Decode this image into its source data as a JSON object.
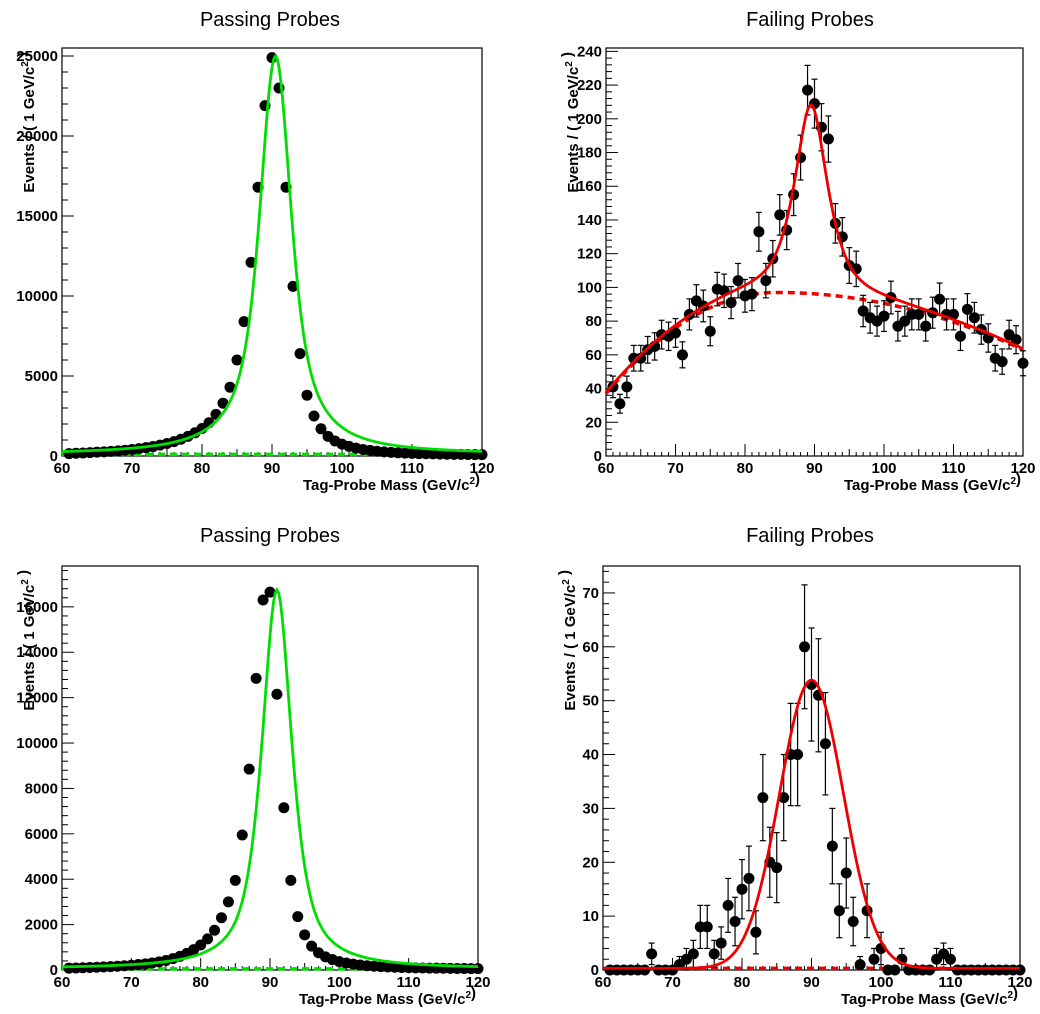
{
  "x_label": "Tag-Probe Mass (GeV/c²)",
  "y_label": "Events / ( 1 GeV/c² )",
  "colors": {
    "pass_fit": "#00dd00",
    "fail_fit": "#ee0000",
    "points": "#000000"
  },
  "chart_data": [
    {
      "type": "scatter",
      "title": "Passing Probes",
      "xlabel": "Tag-Probe Mass (GeV/c²)",
      "ylabel": "Events / ( 1 GeV/c² )",
      "xlim": [
        60,
        120
      ],
      "ylim": [
        0,
        25500
      ],
      "xticks": [
        60,
        70,
        80,
        90,
        100,
        110,
        120
      ],
      "yticks": [
        0,
        5000,
        10000,
        15000,
        20000,
        25000
      ],
      "series": [
        {
          "role": "data",
          "x": [
            61,
            62,
            63,
            64,
            65,
            66,
            67,
            68,
            69,
            70,
            71,
            72,
            73,
            74,
            75,
            76,
            77,
            78,
            79,
            80,
            81,
            82,
            83,
            84,
            85,
            86,
            87,
            88,
            89,
            90,
            91,
            92,
            93,
            94,
            95,
            96,
            97,
            98,
            99,
            100,
            101,
            102,
            103,
            104,
            105,
            106,
            107,
            108,
            109,
            110,
            111,
            112,
            113,
            114,
            115,
            116,
            117,
            118,
            119,
            120
          ],
          "y": [
            150,
            170,
            190,
            210,
            240,
            260,
            290,
            320,
            360,
            410,
            460,
            520,
            590,
            680,
            780,
            900,
            1050,
            1230,
            1450,
            1720,
            2080,
            2600,
            3300,
            4300,
            6000,
            8400,
            12100,
            16800,
            21900,
            24900,
            23000,
            16800,
            10600,
            6400,
            3800,
            2500,
            1700,
            1230,
            940,
            740,
            600,
            490,
            410,
            350,
            300,
            260,
            230,
            200,
            180,
            165,
            150,
            140,
            130,
            120,
            110,
            105,
            100,
            95,
            90,
            85
          ],
          "yerr": []
        },
        {
          "role": "fit",
          "style": "solid",
          "color": "#00dd00",
          "model": "voigt",
          "amp": 24900,
          "mean": 90.5,
          "gamma": 3.0,
          "sigma": 0.9,
          "bkg": 100
        },
        {
          "role": "background",
          "style": "dashed",
          "color": "#00dd00",
          "value": 100
        }
      ]
    },
    {
      "type": "scatter",
      "title": "Failing Probes",
      "xlabel": "Tag-Probe Mass (GeV/c²)",
      "ylabel": "Events / ( 1 GeV/c² )",
      "xlim": [
        60,
        120
      ],
      "ylim": [
        0,
        242
      ],
      "xticks": [
        60,
        70,
        80,
        90,
        100,
        110,
        120
      ],
      "yticks": [
        0,
        20,
        40,
        60,
        80,
        100,
        120,
        140,
        160,
        180,
        200,
        220,
        240
      ],
      "series": [
        {
          "role": "data",
          "x": [
            61,
            62,
            63,
            64,
            65,
            66,
            67,
            68,
            69,
            70,
            71,
            72,
            73,
            74,
            75,
            76,
            77,
            78,
            79,
            80,
            81,
            82,
            83,
            84,
            85,
            86,
            87,
            88,
            89,
            90,
            91,
            92,
            93,
            94,
            95,
            96,
            97,
            98,
            99,
            100,
            101,
            102,
            103,
            104,
            105,
            106,
            107,
            108,
            109,
            110,
            111,
            112,
            113,
            114,
            115,
            116,
            117,
            118,
            119,
            120
          ],
          "y": [
            41,
            31,
            41,
            58,
            58,
            63,
            65,
            72,
            71,
            73,
            60,
            84,
            92,
            89,
            74,
            99,
            98,
            91,
            104,
            95,
            96,
            133,
            104,
            117,
            143,
            134,
            155,
            177,
            217,
            209,
            195,
            188,
            138,
            130,
            113,
            111,
            86,
            82,
            80,
            83,
            94,
            77,
            80,
            84,
            84,
            77,
            85,
            93,
            84,
            84,
            71,
            87,
            82,
            75,
            70,
            58,
            56,
            72,
            69,
            55
          ],
          "yerr": [
            6.4,
            5.6,
            6.4,
            7.6,
            7.6,
            7.9,
            8.1,
            8.5,
            8.4,
            8.5,
            7.7,
            9.2,
            9.6,
            9.4,
            8.6,
            9.9,
            9.9,
            9.5,
            10.2,
            9.7,
            9.8,
            11.5,
            10.2,
            10.8,
            12,
            11.6,
            12.4,
            13.3,
            14.7,
            14.5,
            14,
            13.7,
            11.7,
            11.4,
            10.6,
            10.5,
            9.3,
            9.1,
            8.9,
            9.1,
            9.7,
            8.8,
            8.9,
            9.2,
            9.2,
            8.8,
            9.2,
            9.6,
            9.2,
            9.2,
            8.4,
            9.3,
            9.1,
            8.7,
            8.4,
            7.6,
            7.5,
            8.5,
            8.3,
            7.4
          ]
        },
        {
          "role": "fit",
          "style": "solid",
          "color": "#ee0000",
          "model": "voigt+bkg",
          "amp": 112,
          "mean": 89.5,
          "gamma": 2.7,
          "sigma": 1.2
        },
        {
          "role": "background",
          "style": "dashed",
          "color": "#ee0000",
          "model": "quadratic",
          "peak_x": 84.5,
          "peak_y": 97,
          "y_at_60": 37,
          "y_at_120": 63
        }
      ]
    },
    {
      "type": "scatter",
      "title": "Passing Probes",
      "xlabel": "Tag-Probe Mass (GeV/c²)",
      "ylabel": "Events / ( 1 GeV/c² )",
      "xlim": [
        60,
        120
      ],
      "ylim": [
        0,
        17800
      ],
      "xticks": [
        60,
        70,
        80,
        90,
        100,
        110,
        120
      ],
      "yticks": [
        0,
        2000,
        4000,
        6000,
        8000,
        10000,
        12000,
        14000,
        16000
      ],
      "series": [
        {
          "role": "data",
          "x": [
            61,
            62,
            63,
            64,
            65,
            66,
            67,
            68,
            69,
            70,
            71,
            72,
            73,
            74,
            75,
            76,
            77,
            78,
            79,
            80,
            81,
            82,
            83,
            84,
            85,
            86,
            87,
            88,
            89,
            90,
            91,
            92,
            93,
            94,
            95,
            96,
            97,
            98,
            99,
            100,
            101,
            102,
            103,
            104,
            105,
            106,
            107,
            108,
            109,
            110,
            111,
            112,
            113,
            114,
            115,
            116,
            117,
            118,
            119,
            120
          ],
          "y": [
            80,
            90,
            100,
            110,
            120,
            135,
            150,
            165,
            185,
            210,
            240,
            270,
            310,
            360,
            420,
            500,
            600,
            730,
            900,
            1100,
            1370,
            1750,
            2300,
            3000,
            3950,
            5950,
            8850,
            12850,
            16300,
            16650,
            12150,
            7150,
            3950,
            2350,
            1550,
            1050,
            760,
            580,
            460,
            370,
            310,
            260,
            220,
            190,
            165,
            150,
            135,
            120,
            110,
            100,
            95,
            90,
            85,
            80,
            75,
            70,
            68,
            65,
            62,
            60
          ],
          "yerr": []
        },
        {
          "role": "fit",
          "style": "solid",
          "color": "#00dd00",
          "model": "voigt",
          "amp": 16700,
          "mean": 91.0,
          "gamma": 2.6,
          "sigma": 1.0,
          "bkg": 50
        },
        {
          "role": "background",
          "style": "dashed",
          "color": "#00dd00",
          "value": 50
        }
      ]
    },
    {
      "type": "scatter",
      "title": "Failing Probes",
      "xlabel": "Tag-Probe Mass (GeV/c²)",
      "ylabel": "Events / ( 1 GeV/c² )",
      "xlim": [
        60,
        120
      ],
      "ylim": [
        0,
        75
      ],
      "xticks": [
        60,
        70,
        80,
        90,
        100,
        110,
        120
      ],
      "yticks": [
        0,
        10,
        20,
        30,
        40,
        50,
        60,
        70
      ],
      "series": [
        {
          "role": "data",
          "x": [
            61,
            62,
            63,
            64,
            65,
            66,
            67,
            68,
            69,
            70,
            71,
            72,
            73,
            74,
            75,
            76,
            77,
            78,
            79,
            80,
            81,
            82,
            83,
            84,
            85,
            86,
            87,
            88,
            89,
            90,
            91,
            92,
            93,
            94,
            95,
            96,
            97,
            98,
            99,
            100,
            101,
            102,
            103,
            104,
            105,
            106,
            107,
            108,
            109,
            110,
            111,
            112,
            113,
            114,
            115,
            116,
            117,
            118,
            119,
            120
          ],
          "y": [
            0,
            0,
            0,
            0,
            0,
            0,
            3,
            0,
            0,
            0,
            1,
            2,
            3,
            8,
            8,
            3,
            5,
            12,
            9,
            15,
            17,
            7,
            32,
            20,
            19,
            32,
            40,
            40,
            60,
            53,
            51,
            42,
            23,
            11,
            18,
            9,
            1,
            11,
            2,
            4,
            0,
            0,
            2,
            0,
            0,
            0,
            0,
            2,
            3,
            2,
            0,
            0,
            0,
            0,
            0,
            0,
            0,
            0,
            0,
            0
          ],
          "yerr": [
            0,
            0,
            0,
            0,
            0,
            0,
            2,
            0,
            0,
            0,
            1.5,
            2,
            2.5,
            4,
            4,
            2.5,
            3,
            5,
            4.5,
            5.5,
            6,
            4,
            8,
            6.5,
            6.5,
            8,
            9.5,
            9.5,
            11.5,
            10.5,
            10.5,
            9.5,
            7,
            5,
            6.5,
            4.5,
            1.5,
            5,
            2,
            3,
            0,
            0,
            2,
            0,
            0,
            0,
            0,
            2,
            2,
            2,
            0,
            0,
            0,
            0,
            0,
            0,
            0,
            0,
            0,
            0
          ]
        },
        {
          "role": "fit",
          "style": "solid",
          "color": "#ee0000",
          "model": "gauss",
          "amp": 53.5,
          "mean": 90.0,
          "sigma": 4.6
        },
        {
          "role": "background",
          "style": "dashed",
          "color": "#ee0000",
          "value": 0.3
        }
      ]
    }
  ]
}
